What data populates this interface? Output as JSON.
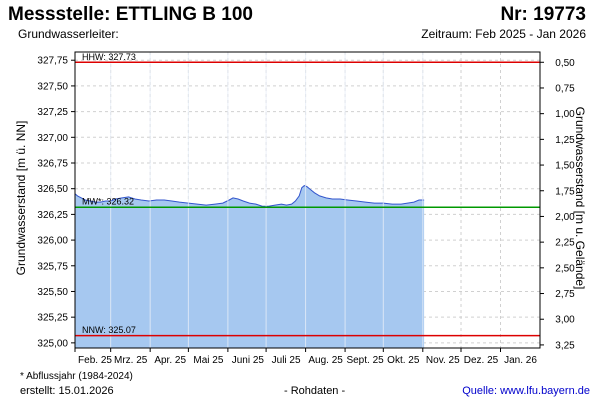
{
  "header": {
    "title": "Messstelle: ETTLING B 100",
    "number": "Nr: 19773",
    "aquifer_label": "Grundwasserleiter:",
    "period": "Zeitraum: Feb 2025 - Jan 2026"
  },
  "footer": {
    "footnote": "* Abflussjahr (1984-2024)",
    "created": "erstellt:  15.01.2026",
    "raw": "- Rohdaten -",
    "source": "Quelle:  www.lfu.bayern.de"
  },
  "colors": {
    "fill": "#a6c8f0",
    "line": "#3355cc",
    "hhw_nnw": "#dd0000",
    "mw": "#009900",
    "grid": "#d0d0d0"
  },
  "chart_data": {
    "type": "area",
    "ylabel_left": "Grundwasserstand [m ü. NN]",
    "ylabel_right": "Grundwasserstand [m u. Gelände]",
    "ylim": [
      324.95,
      327.83
    ],
    "y_ticks": [
      {
        "value": 325.0,
        "label": "325,00"
      },
      {
        "value": 325.25,
        "label": "325,25"
      },
      {
        "value": 325.5,
        "label": "325,50"
      },
      {
        "value": 325.75,
        "label": "325,75"
      },
      {
        "value": 326.0,
        "label": "326,00"
      },
      {
        "value": 326.25,
        "label": "326,25"
      },
      {
        "value": 326.5,
        "label": "326,50"
      },
      {
        "value": 326.75,
        "label": "326,75"
      },
      {
        "value": 327.0,
        "label": "327,00"
      },
      {
        "value": 327.25,
        "label": "327,25"
      },
      {
        "value": 327.5,
        "label": "327,50"
      },
      {
        "value": 327.75,
        "label": "327,75"
      }
    ],
    "y2_ticks": [
      {
        "value": 327.73,
        "label": "0,50"
      },
      {
        "value": 327.48,
        "label": "0,75"
      },
      {
        "value": 327.23,
        "label": "1,00"
      },
      {
        "value": 326.98,
        "label": "1,25"
      },
      {
        "value": 326.73,
        "label": "1,50"
      },
      {
        "value": 326.48,
        "label": "1,75"
      },
      {
        "value": 326.23,
        "label": "2,00"
      },
      {
        "value": 325.98,
        "label": "2,25"
      },
      {
        "value": 325.73,
        "label": "2,50"
      },
      {
        "value": 325.48,
        "label": "2,75"
      },
      {
        "value": 325.23,
        "label": "3,00"
      },
      {
        "value": 324.98,
        "label": "3,25"
      }
    ],
    "x_range": [
      "2025-02-01",
      "2026-02-01"
    ],
    "x_ticks": [
      {
        "date": "2025-02-01",
        "label": "Feb. 25"
      },
      {
        "date": "2025-03-01",
        "label": "Mrz. 25"
      },
      {
        "date": "2025-04-01",
        "label": "Apr. 25"
      },
      {
        "date": "2025-05-01",
        "label": "Mai 25"
      },
      {
        "date": "2025-06-01",
        "label": "Juni 25"
      },
      {
        "date": "2025-07-01",
        "label": "Juli 25"
      },
      {
        "date": "2025-08-01",
        "label": "Aug. 25"
      },
      {
        "date": "2025-09-01",
        "label": "Sept. 25"
      },
      {
        "date": "2025-10-01",
        "label": "Okt. 25"
      },
      {
        "date": "2025-11-01",
        "label": "Nov. 25"
      },
      {
        "date": "2025-12-01",
        "label": "Dez. 25"
      },
      {
        "date": "2026-01-01",
        "label": "Jan. 26"
      }
    ],
    "reference_lines": [
      {
        "label": "HHW: 327.73",
        "value": 327.73,
        "color": "#dd0000"
      },
      {
        "label": "MW*: 326.32",
        "value": 326.32,
        "color": "#009900"
      },
      {
        "label": "NNW: 325.07",
        "value": 325.07,
        "color": "#dd0000"
      }
    ],
    "series": [
      {
        "x": [
          "2025-01-31",
          "2025-02-03",
          "2025-02-06",
          "2025-02-09",
          "2025-02-13",
          "2025-02-17",
          "2025-02-21",
          "2025-02-25",
          "2025-03-01",
          "2025-03-05",
          "2025-03-10",
          "2025-03-15",
          "2025-03-20",
          "2025-03-25",
          "2025-03-31",
          "2025-04-06",
          "2025-04-12",
          "2025-04-18",
          "2025-04-24",
          "2025-05-01",
          "2025-05-08",
          "2025-05-15",
          "2025-05-22",
          "2025-05-28",
          "2025-06-02",
          "2025-06-05",
          "2025-06-09",
          "2025-06-13",
          "2025-06-18",
          "2025-06-23",
          "2025-06-28",
          "2025-07-03",
          "2025-07-08",
          "2025-07-13",
          "2025-07-17",
          "2025-07-21",
          "2025-07-24",
          "2025-07-27",
          "2025-07-29",
          "2025-07-31",
          "2025-08-02",
          "2025-08-05",
          "2025-08-08",
          "2025-08-12",
          "2025-08-17",
          "2025-08-22",
          "2025-08-28",
          "2025-09-03",
          "2025-09-10",
          "2025-09-17",
          "2025-09-24",
          "2025-10-01",
          "2025-10-08",
          "2025-10-15",
          "2025-10-20",
          "2025-10-25",
          "2025-10-29",
          "2025-11-02"
        ],
        "y": [
          326.45,
          326.43,
          326.41,
          326.39,
          326.38,
          326.37,
          326.37,
          326.38,
          326.38,
          326.4,
          326.41,
          326.42,
          326.4,
          326.39,
          326.38,
          326.39,
          326.39,
          326.38,
          326.37,
          326.36,
          326.35,
          326.34,
          326.35,
          326.36,
          326.39,
          326.41,
          326.4,
          326.38,
          326.36,
          326.35,
          326.33,
          326.33,
          326.34,
          326.35,
          326.34,
          326.35,
          326.38,
          326.43,
          326.51,
          326.53,
          326.52,
          326.49,
          326.46,
          326.43,
          326.41,
          326.4,
          326.4,
          326.39,
          326.38,
          326.37,
          326.36,
          326.36,
          326.35,
          326.35,
          326.36,
          326.37,
          326.39,
          326.39
        ]
      }
    ]
  }
}
